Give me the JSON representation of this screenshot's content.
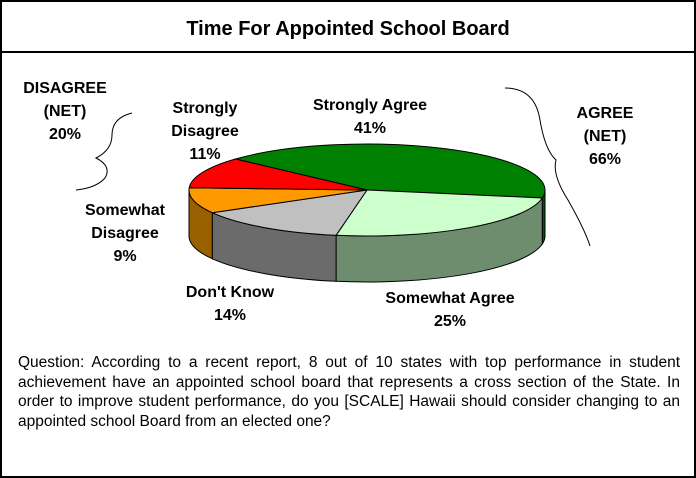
{
  "chart_data": {
    "type": "pie3d",
    "title": "Time For Appointed School Board",
    "categories": [
      "Strongly Agree",
      "Somewhat Agree",
      "Don't Know",
      "Somewhat Disagree",
      "Strongly Disagree"
    ],
    "values": [
      41,
      25,
      14,
      9,
      11
    ],
    "value_labels": [
      "41%",
      "25%",
      "14%",
      "9%",
      "11%"
    ],
    "colors": [
      "#008000",
      "#ccffcc",
      "#c0c0c0",
      "#ff9900",
      "#ff0000"
    ],
    "side_colors": [
      "#005a00",
      "#6e8c6e",
      "#6b6b6b",
      "#996000",
      "#a00000"
    ],
    "annotations": [
      {
        "text": "DISAGREE (NET)",
        "percent": "20%"
      },
      {
        "text": "AGREE (NET)",
        "percent": "66%"
      }
    ],
    "footnote": "Question: According to a recent report, 8 out of 10 states with top performance in student achievement have an appointed school board that represents a cross section of the State.  In order to improve student performance, do you [SCALE] Hawaii should consider changing to an appointed school Board from an elected one?"
  }
}
